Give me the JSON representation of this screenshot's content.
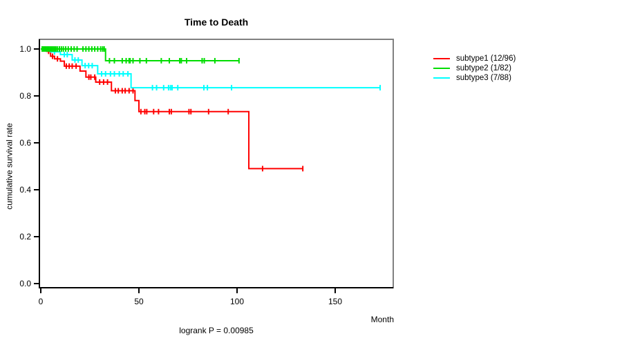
{
  "title": "Time to Death",
  "ylabel": "cumulative survival rate",
  "xlabel": "Month",
  "footnote": "logrank P = 0.00985",
  "legend": [
    {
      "label": "subtype1 (12/96)",
      "color": "#FF0000"
    },
    {
      "label": "subtype2 (1/82)",
      "color": "#00DD00"
    },
    {
      "label": "subtype3 (7/88)",
      "color": "#00FFFF"
    }
  ],
  "chart_data": {
    "type": "line",
    "subtype": "kaplan-meier-step",
    "title": "Time to Death",
    "xlabel": "Month",
    "ylabel": "cumulative survival rate",
    "annotation": "logrank P = 0.00985",
    "xlim": [
      0,
      180
    ],
    "ylim": [
      0.0,
      1.0
    ],
    "xticks": [
      0,
      50,
      100,
      150
    ],
    "yticks": [
      0.0,
      0.2,
      0.4,
      0.6,
      0.8,
      1.0
    ],
    "grid": false,
    "legend_position": "right",
    "box_color": "#808080",
    "axis_color": "#000000",
    "series": [
      {
        "name": "subtype1 (12/96)",
        "color": "#FF0000",
        "steps": [
          [
            0,
            1.0
          ],
          [
            3,
            0.99
          ],
          [
            5,
            0.969
          ],
          [
            7,
            0.958
          ],
          [
            10,
            0.948
          ],
          [
            12,
            0.927
          ],
          [
            20,
            0.906
          ],
          [
            23,
            0.88
          ],
          [
            28,
            0.859
          ],
          [
            36,
            0.822
          ],
          [
            48,
            0.78
          ],
          [
            50,
            0.733
          ],
          [
            106,
            0.49
          ]
        ],
        "end": 133.5,
        "censors": [
          [
            1,
            1.0
          ],
          [
            2,
            1.0
          ],
          [
            4,
            0.99
          ],
          [
            6,
            0.969
          ],
          [
            8.5,
            0.958
          ],
          [
            13,
            0.927
          ],
          [
            14.5,
            0.927
          ],
          [
            16,
            0.927
          ],
          [
            18,
            0.927
          ],
          [
            24.5,
            0.88
          ],
          [
            25.5,
            0.88
          ],
          [
            27.5,
            0.88
          ],
          [
            30,
            0.859
          ],
          [
            32,
            0.859
          ],
          [
            34,
            0.859
          ],
          [
            38,
            0.822
          ],
          [
            39.5,
            0.822
          ],
          [
            41.5,
            0.822
          ],
          [
            43,
            0.822
          ],
          [
            45,
            0.822
          ],
          [
            47,
            0.822
          ],
          [
            51,
            0.733
          ],
          [
            53,
            0.733
          ],
          [
            54,
            0.733
          ],
          [
            57.5,
            0.733
          ],
          [
            60,
            0.733
          ],
          [
            65.5,
            0.733
          ],
          [
            66.5,
            0.733
          ],
          [
            75.5,
            0.733
          ],
          [
            76.5,
            0.733
          ],
          [
            85.5,
            0.733
          ],
          [
            95.5,
            0.733
          ],
          [
            113,
            0.49
          ],
          [
            133.5,
            0.49
          ]
        ]
      },
      {
        "name": "subtype2 (1/82)",
        "color": "#00DD00",
        "steps": [
          [
            0,
            1.0
          ],
          [
            33,
            0.95
          ]
        ],
        "end": 101,
        "censors": [
          [
            0.7,
            1
          ],
          [
            1.4,
            1
          ],
          [
            2.1,
            1
          ],
          [
            2.8,
            1
          ],
          [
            3.5,
            1
          ],
          [
            4.2,
            1
          ],
          [
            4.9,
            1
          ],
          [
            5.6,
            1
          ],
          [
            6.3,
            1
          ],
          [
            7,
            1
          ],
          [
            7.7,
            1
          ],
          [
            8.5,
            1
          ],
          [
            9.5,
            1
          ],
          [
            10.5,
            1
          ],
          [
            11.5,
            1
          ],
          [
            12.7,
            1
          ],
          [
            14,
            1
          ],
          [
            15.5,
            1
          ],
          [
            17,
            1
          ],
          [
            18.5,
            1
          ],
          [
            21.5,
            1
          ],
          [
            23,
            1
          ],
          [
            24.5,
            1
          ],
          [
            26,
            1
          ],
          [
            27.5,
            1
          ],
          [
            29,
            1
          ],
          [
            30.5,
            1
          ],
          [
            31.5,
            1
          ],
          [
            32.3,
            1
          ],
          [
            35,
            0.95
          ],
          [
            37.5,
            0.95
          ],
          [
            41.5,
            0.95
          ],
          [
            43.5,
            0.95
          ],
          [
            45,
            0.95
          ],
          [
            45.5,
            0.95
          ],
          [
            47,
            0.95
          ],
          [
            50.5,
            0.95
          ],
          [
            53.8,
            0.95
          ],
          [
            61.4,
            0.95
          ],
          [
            65.5,
            0.95
          ],
          [
            70.8,
            0.95
          ],
          [
            71.6,
            0.95
          ],
          [
            74.3,
            0.95
          ],
          [
            82.2,
            0.95
          ],
          [
            83.3,
            0.95
          ],
          [
            88.7,
            0.95
          ],
          [
            101,
            0.95
          ]
        ]
      },
      {
        "name": "subtype3 (7/88)",
        "color": "#00FFFF",
        "steps": [
          [
            0,
            1.0
          ],
          [
            5,
            0.988
          ],
          [
            10,
            0.976
          ],
          [
            16,
            0.953
          ],
          [
            21,
            0.929
          ],
          [
            29,
            0.894
          ],
          [
            46,
            0.835
          ]
        ],
        "end": 173,
        "censors": [
          [
            1.5,
            1
          ],
          [
            3.9,
            1
          ],
          [
            7,
            0.988
          ],
          [
            12,
            0.976
          ],
          [
            13.5,
            0.976
          ],
          [
            17.4,
            0.953
          ],
          [
            19.1,
            0.953
          ],
          [
            22.6,
            0.929
          ],
          [
            24.4,
            0.929
          ],
          [
            26.2,
            0.929
          ],
          [
            31,
            0.894
          ],
          [
            33,
            0.894
          ],
          [
            35.5,
            0.894
          ],
          [
            37.5,
            0.894
          ],
          [
            40,
            0.894
          ],
          [
            42,
            0.894
          ],
          [
            44.4,
            0.894
          ],
          [
            56.9,
            0.835
          ],
          [
            59,
            0.835
          ],
          [
            62.6,
            0.835
          ],
          [
            65.1,
            0.835
          ],
          [
            66.1,
            0.835
          ],
          [
            66.9,
            0.835
          ],
          [
            69.8,
            0.835
          ],
          [
            83.1,
            0.835
          ],
          [
            84.9,
            0.835
          ],
          [
            97.2,
            0.835
          ],
          [
            172.9,
            0.835
          ]
        ]
      }
    ]
  }
}
